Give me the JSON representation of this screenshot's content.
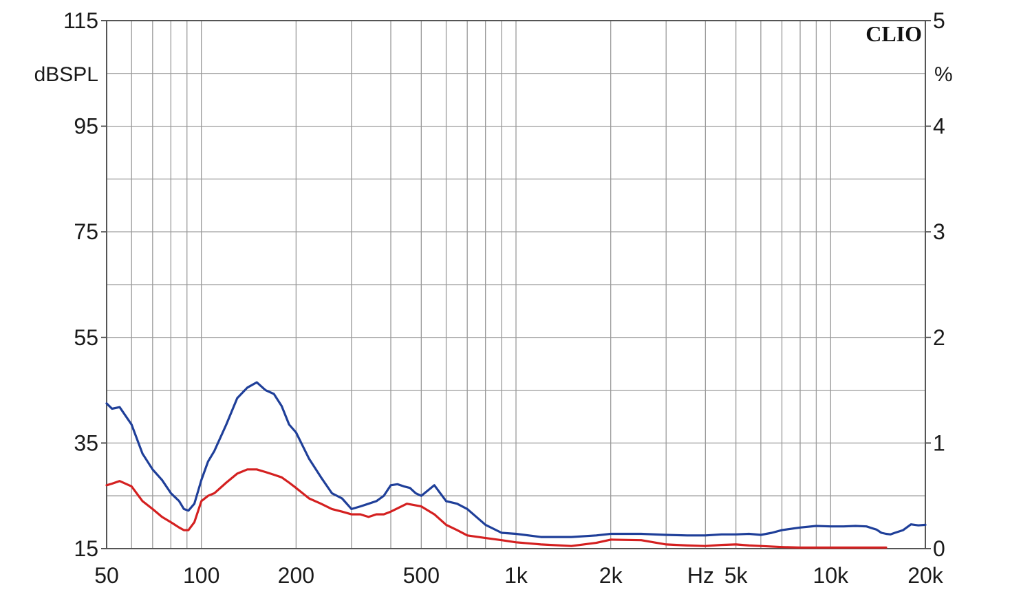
{
  "chart_data": {
    "type": "line",
    "brand": "CLIO",
    "x_scale": "log",
    "xlim": [
      50,
      20000
    ],
    "x_major_ticks": [
      {
        "value": 50,
        "label": "50"
      },
      {
        "value": 100,
        "label": "100"
      },
      {
        "value": 200,
        "label": "200"
      },
      {
        "value": 500,
        "label": "500"
      },
      {
        "value": 1000,
        "label": "1k"
      },
      {
        "value": 2000,
        "label": "2k"
      },
      {
        "value": 5000,
        "label": "5k"
      },
      {
        "value": 10000,
        "label": "10k"
      },
      {
        "value": 20000,
        "label": "20k"
      }
    ],
    "x_unit_label": "Hz",
    "y_left": {
      "label": "dBSPL",
      "ylim": [
        15,
        115
      ],
      "ticks": [
        {
          "value": 115,
          "label": "115"
        },
        {
          "value": 95,
          "label": "95"
        },
        {
          "value": 75,
          "label": "75"
        },
        {
          "value": 55,
          "label": "55"
        },
        {
          "value": 35,
          "label": "35"
        },
        {
          "value": 15,
          "label": "15"
        }
      ]
    },
    "y_right": {
      "label": "%",
      "ylim": [
        0,
        5
      ],
      "ticks": [
        {
          "value": 5,
          "label": "5"
        },
        {
          "value": 4,
          "label": "4"
        },
        {
          "value": 3,
          "label": "3"
        },
        {
          "value": 2,
          "label": "2"
        },
        {
          "value": 1,
          "label": "1"
        },
        {
          "value": 0,
          "label": "0"
        }
      ]
    },
    "grid": true,
    "series": [
      {
        "color": "#1f3f99",
        "axis": "left",
        "x": [
          50,
          52,
          55,
          60,
          65,
          70,
          75,
          80,
          85,
          88,
          91,
          95,
          100,
          105,
          110,
          120,
          130,
          140,
          150,
          160,
          170,
          180,
          190,
          200,
          220,
          240,
          260,
          280,
          300,
          320,
          340,
          360,
          380,
          400,
          420,
          440,
          460,
          480,
          500,
          550,
          600,
          650,
          700,
          800,
          900,
          1000,
          1200,
          1500,
          1800,
          2000,
          2500,
          3000,
          3500,
          4000,
          4500,
          5000,
          5500,
          6000,
          6500,
          7000,
          8000,
          9000,
          10000,
          11000,
          12000,
          13000,
          14000,
          14500,
          15000,
          15500,
          16000,
          17000,
          18000,
          19000,
          20000
        ],
        "y": [
          42.5,
          41.5,
          41.8,
          38.5,
          33,
          30,
          28,
          25.5,
          24,
          22.5,
          22.2,
          23.5,
          28,
          31.5,
          33.5,
          38.5,
          43.5,
          45.5,
          46.5,
          45,
          44.3,
          42,
          38.5,
          37,
          32,
          28.5,
          25.5,
          24.5,
          22.5,
          23,
          23.5,
          24,
          25,
          27,
          27.2,
          26.8,
          26.5,
          25.5,
          25,
          27,
          24,
          23.5,
          22.5,
          19.5,
          18,
          17.8,
          17.2,
          17.2,
          17.5,
          17.8,
          17.8,
          17.6,
          17.5,
          17.5,
          17.7,
          17.7,
          17.8,
          17.6,
          18,
          18.5,
          19,
          19.3,
          19.2,
          19.2,
          19.3,
          19.2,
          18.6,
          18,
          17.8,
          17.7,
          18,
          18.5,
          19.6,
          19.4,
          19.5
        ]
      },
      {
        "color": "#d42020",
        "axis": "left",
        "x": [
          50,
          52,
          55,
          60,
          65,
          70,
          75,
          80,
          85,
          88,
          91,
          95,
          100,
          105,
          110,
          120,
          130,
          140,
          150,
          160,
          170,
          180,
          190,
          200,
          220,
          240,
          260,
          280,
          300,
          320,
          340,
          360,
          380,
          400,
          450,
          500,
          550,
          600,
          650,
          700,
          800,
          900,
          1000,
          1200,
          1500,
          1800,
          2000,
          2500,
          3000,
          3500,
          4000,
          4500,
          5000,
          5500,
          6000,
          7000,
          8000,
          10000,
          12000,
          14000,
          15000
        ],
        "y": [
          27,
          27.3,
          27.8,
          26.8,
          24,
          22.5,
          21,
          20,
          19,
          18.5,
          18.5,
          20,
          24,
          25,
          25.5,
          27.5,
          29.2,
          30,
          30,
          29.5,
          29,
          28.5,
          27.5,
          26.5,
          24.5,
          23.5,
          22.5,
          22,
          21.5,
          21.5,
          21,
          21.5,
          21.5,
          22,
          23.5,
          23,
          21.5,
          19.5,
          18.5,
          17.5,
          17,
          16.6,
          16.2,
          15.8,
          15.5,
          16.1,
          16.7,
          16.6,
          15.8,
          15.6,
          15.5,
          15.7,
          15.8,
          15.6,
          15.5,
          15.3,
          15.2,
          15.2,
          15.2,
          15.2,
          15.2
        ]
      }
    ]
  }
}
